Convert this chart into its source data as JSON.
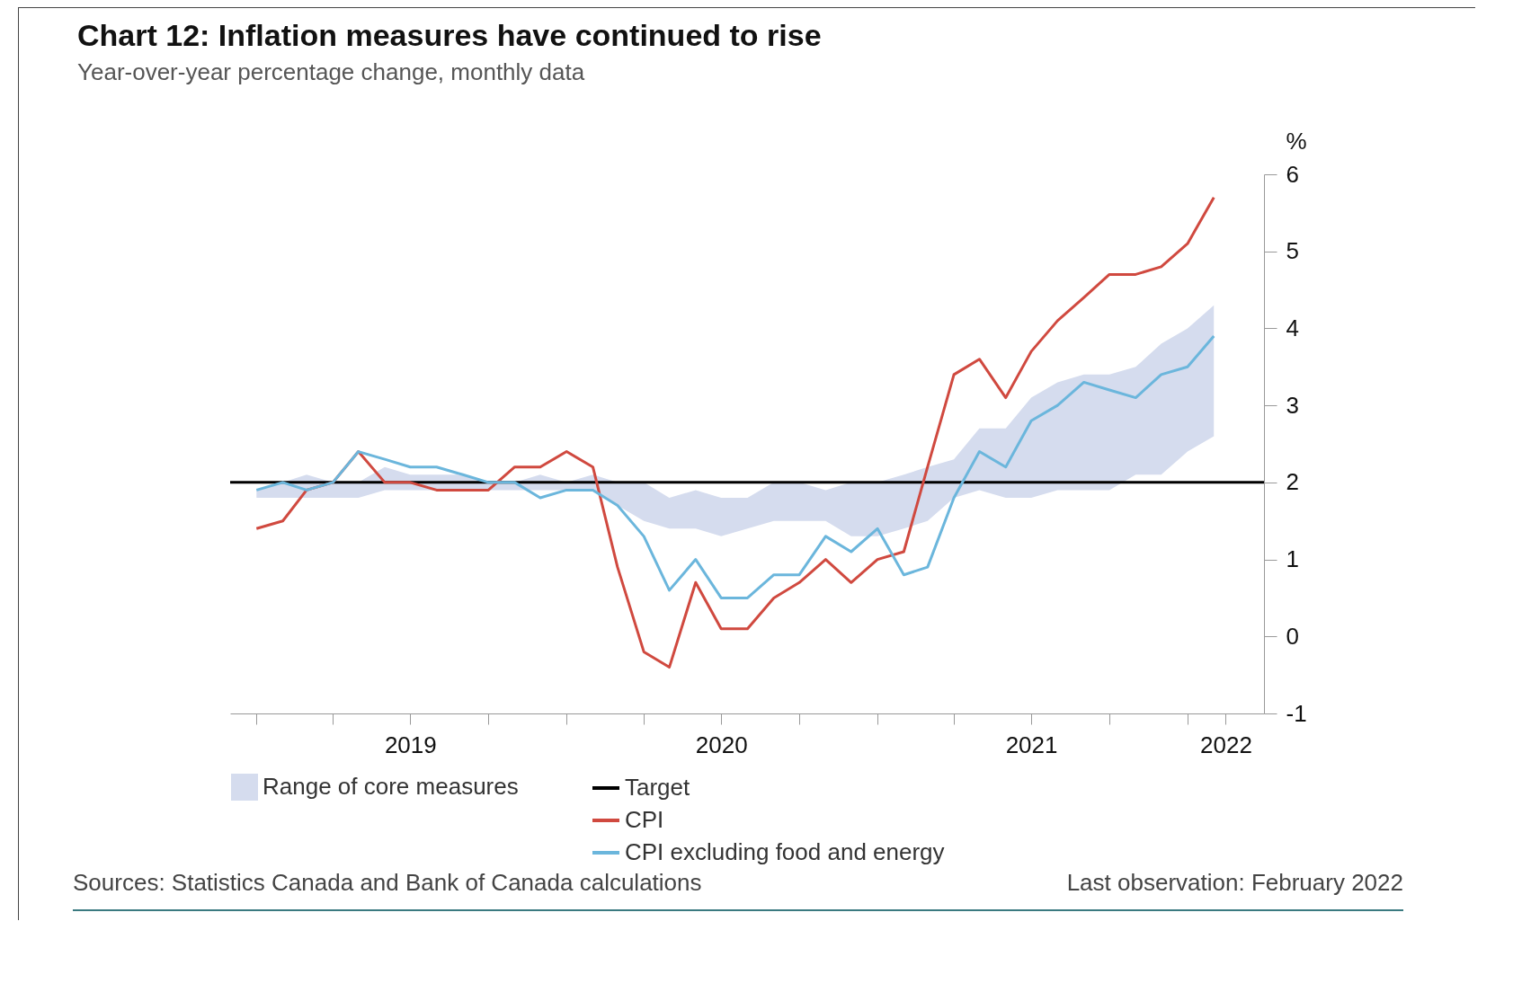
{
  "chart_data": {
    "type": "line",
    "title": "Chart 12: Inflation measures have continued to rise",
    "subtitle": "Year-over-year percentage change, monthly data",
    "ylabel": "%",
    "x": [
      "2019-01",
      "2019-02",
      "2019-03",
      "2019-04",
      "2019-05",
      "2019-06",
      "2019-07",
      "2019-08",
      "2019-09",
      "2019-10",
      "2019-11",
      "2019-12",
      "2020-01",
      "2020-02",
      "2020-03",
      "2020-04",
      "2020-05",
      "2020-06",
      "2020-07",
      "2020-08",
      "2020-09",
      "2020-10",
      "2020-11",
      "2020-12",
      "2021-01",
      "2021-02",
      "2021-03",
      "2021-04",
      "2021-05",
      "2021-06",
      "2021-07",
      "2021-08",
      "2021-09",
      "2021-10",
      "2021-11",
      "2021-12",
      "2022-01",
      "2022-02"
    ],
    "series": [
      {
        "name": "Range of core measures",
        "type": "area",
        "color": "#d5dcee",
        "values": [
          null,
          null,
          null,
          null,
          null,
          null,
          null,
          null,
          null,
          null,
          null,
          null,
          null,
          null,
          null,
          null,
          null,
          null,
          null,
          null,
          null,
          null,
          null,
          null,
          null,
          null,
          null,
          null,
          null,
          null,
          null,
          null,
          null,
          null,
          null,
          null,
          null,
          null
        ],
        "lower": [
          1.8,
          1.8,
          1.8,
          1.8,
          1.8,
          1.9,
          1.9,
          1.9,
          1.9,
          1.9,
          1.9,
          1.9,
          1.9,
          1.9,
          1.7,
          1.5,
          1.4,
          1.4,
          1.3,
          1.4,
          1.5,
          1.5,
          1.5,
          1.3,
          1.3,
          1.4,
          1.5,
          1.8,
          1.9,
          1.8,
          1.8,
          1.9,
          1.9,
          1.9,
          2.1,
          2.1,
          2.4,
          2.6
        ],
        "upper": [
          1.9,
          2.0,
          2.1,
          2.0,
          2.0,
          2.2,
          2.1,
          2.1,
          2.1,
          2.0,
          2.0,
          2.1,
          2.0,
          2.1,
          2.0,
          2.0,
          1.8,
          1.9,
          1.8,
          1.8,
          2.0,
          2.0,
          1.9,
          2.0,
          2.0,
          2.1,
          2.2,
          2.3,
          2.7,
          2.7,
          3.1,
          3.3,
          3.4,
          3.4,
          3.5,
          3.8,
          4.0,
          4.3
        ]
      },
      {
        "name": "CPI",
        "color": "#d0493f",
        "values": [
          1.4,
          1.5,
          1.9,
          2.0,
          2.4,
          2.0,
          2.0,
          1.9,
          1.9,
          1.9,
          2.2,
          2.2,
          2.4,
          2.2,
          0.9,
          -0.2,
          -0.4,
          0.7,
          0.1,
          0.1,
          0.5,
          0.7,
          1.0,
          0.7,
          1.0,
          1.1,
          2.2,
          3.4,
          3.6,
          3.1,
          3.7,
          4.1,
          4.4,
          4.7,
          4.7,
          4.8,
          5.1,
          5.7
        ]
      },
      {
        "name": "CPI excluding food and energy",
        "color": "#6bb6dc",
        "values": [
          1.9,
          2.0,
          1.9,
          2.0,
          2.4,
          2.3,
          2.2,
          2.2,
          2.1,
          2.0,
          2.0,
          1.8,
          1.9,
          1.9,
          1.7,
          1.3,
          0.6,
          1.0,
          0.5,
          0.5,
          0.8,
          0.8,
          1.3,
          1.1,
          1.4,
          0.8,
          0.9,
          1.8,
          2.4,
          2.2,
          2.8,
          3.0,
          3.3,
          3.2,
          3.1,
          3.4,
          3.5,
          3.9
        ]
      }
    ],
    "ref_lines": [
      {
        "axis": "y",
        "value": 2,
        "label": "Target",
        "color": "#000000"
      }
    ],
    "xlim": [
      "2018-12",
      "2022-04"
    ],
    "xticks": [
      {
        "value": "2019-01",
        "label": null
      },
      {
        "value": "2019-04",
        "label": null
      },
      {
        "value": "2019-07",
        "label": "2019"
      },
      {
        "value": "2019-10",
        "label": null
      },
      {
        "value": "2020-01",
        "label": null
      },
      {
        "value": "2020-04",
        "label": null
      },
      {
        "value": "2020-07",
        "label": "2020"
      },
      {
        "value": "2020-10",
        "label": null
      },
      {
        "value": "2021-01",
        "label": null
      },
      {
        "value": "2021-04",
        "label": null
      },
      {
        "value": "2021-07",
        "label": "2021"
      },
      {
        "value": "2021-10",
        "label": null
      },
      {
        "value": "2022-01",
        "label": null
      },
      {
        "value": "2022-02-15",
        "label": "2022"
      }
    ],
    "ylim": [
      -1,
      6
    ],
    "yticks": [
      -1,
      0,
      1,
      2,
      3,
      4,
      5,
      6
    ],
    "grid": false,
    "legend": "bottom",
    "line_style": "solid",
    "marker": "none",
    "annotations": [
      "Sources: Statistics Canada and Bank of Canada calculations",
      "Last observation: February 2022"
    ]
  }
}
